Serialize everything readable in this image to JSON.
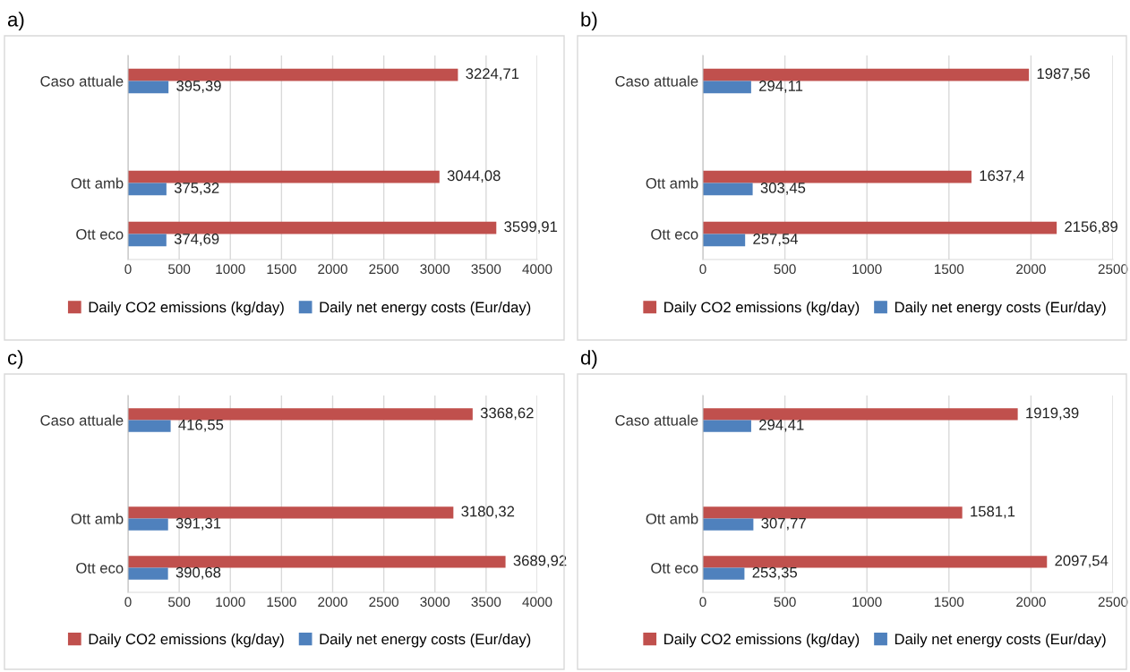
{
  "chart_data": [
    {
      "type": "bar",
      "title": "a)",
      "orientation": "horizontal",
      "categories": [
        "Caso attuale",
        null,
        "Ott amb",
        "Ott eco"
      ],
      "xlim": [
        0,
        4000
      ],
      "xticks": [
        0,
        500,
        1000,
        1500,
        2000,
        2500,
        3000,
        3500,
        4000
      ],
      "grid": "x",
      "legend": "bottom",
      "series": [
        {
          "name": "Daily CO2 emissions (kg/day)",
          "color": "#c0504d",
          "values": [
            3224.71,
            null,
            3044.08,
            3599.91
          ],
          "value_labels": [
            "3224,71",
            null,
            "3044,08",
            "3599,91"
          ]
        },
        {
          "name": "Daily net energy costs (Eur/day)",
          "color": "#4f81bd",
          "values": [
            395.39,
            null,
            375.32,
            374.69
          ],
          "value_labels": [
            "395,39",
            null,
            "375,32",
            "374,69"
          ]
        }
      ]
    },
    {
      "type": "bar",
      "title": "b)",
      "orientation": "horizontal",
      "categories": [
        "Caso attuale",
        null,
        "Ott amb",
        "Ott eco"
      ],
      "xlim": [
        0,
        2500
      ],
      "xticks": [
        0,
        500,
        1000,
        1500,
        2000,
        2500
      ],
      "grid": "x",
      "legend": "bottom",
      "series": [
        {
          "name": "Daily CO2 emissions (kg/day)",
          "color": "#c0504d",
          "values": [
            1987.56,
            null,
            1637.4,
            2156.89
          ],
          "value_labels": [
            "1987,56",
            null,
            "1637,4",
            "2156,89"
          ]
        },
        {
          "name": "Daily net energy costs (Eur/day)",
          "color": "#4f81bd",
          "values": [
            294.11,
            null,
            303.45,
            257.54
          ],
          "value_labels": [
            "294,11",
            null,
            "303,45",
            "257,54"
          ]
        }
      ]
    },
    {
      "type": "bar",
      "title": "c)",
      "orientation": "horizontal",
      "categories": [
        "Caso attuale",
        null,
        "Ott amb",
        "Ott eco"
      ],
      "xlim": [
        0,
        4000
      ],
      "xticks": [
        0,
        500,
        1000,
        1500,
        2000,
        2500,
        3000,
        3500,
        4000
      ],
      "grid": "x",
      "legend": "bottom",
      "series": [
        {
          "name": "Daily CO2 emissions (kg/day)",
          "color": "#c0504d",
          "values": [
            3368.62,
            null,
            3180.32,
            3689.92
          ],
          "value_labels": [
            "3368,62",
            null,
            "3180,32",
            "3689,92"
          ]
        },
        {
          "name": "Daily net energy costs (Eur/day)",
          "color": "#4f81bd",
          "values": [
            416.55,
            null,
            391.31,
            390.68
          ],
          "value_labels": [
            "416,55",
            null,
            "391,31",
            "390,68"
          ]
        }
      ]
    },
    {
      "type": "bar",
      "title": "d)",
      "orientation": "horizontal",
      "categories": [
        "Caso attuale",
        null,
        "Ott amb",
        "Ott eco"
      ],
      "xlim": [
        0,
        2500
      ],
      "xticks": [
        0,
        500,
        1000,
        1500,
        2000,
        2500
      ],
      "grid": "x",
      "legend": "bottom",
      "series": [
        {
          "name": "Daily CO2 emissions (kg/day)",
          "color": "#c0504d",
          "values": [
            1919.39,
            null,
            1581.1,
            2097.54
          ],
          "value_labels": [
            "1919,39",
            null,
            "1581,1",
            "2097,54"
          ]
        },
        {
          "name": "Daily net energy costs (Eur/day)",
          "color": "#4f81bd",
          "values": [
            294.41,
            null,
            307.77,
            253.35
          ],
          "value_labels": [
            "294,41",
            null,
            "307,77",
            "253,35"
          ]
        }
      ]
    }
  ]
}
